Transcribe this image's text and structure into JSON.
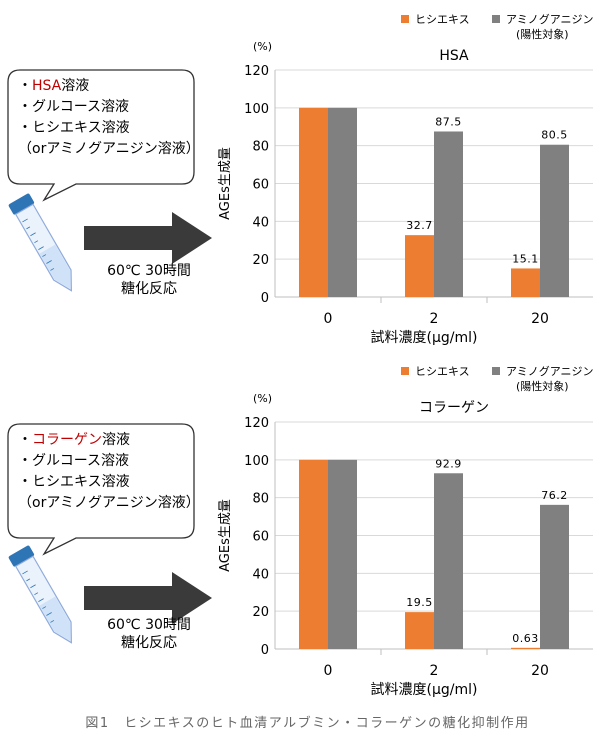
{
  "panels": [
    {
      "bubble_lines": [
        {
          "prefix": "・",
          "highlight": "HSA",
          "rest": "溶液"
        },
        {
          "prefix": "・",
          "highlight": "",
          "rest": "グルコース溶液"
        },
        {
          "prefix": "・",
          "highlight": "",
          "rest": "ヒシエキス溶液"
        },
        {
          "prefix": "",
          "highlight": "",
          "rest": "（orアミノグアニジン溶液）"
        }
      ],
      "condition": [
        "60℃ 30時間",
        "糖化反応"
      ]
    },
    {
      "bubble_lines": [
        {
          "prefix": "・",
          "highlight": "コラーゲン",
          "rest": "溶液"
        },
        {
          "prefix": "・",
          "highlight": "",
          "rest": "グルコース溶液"
        },
        {
          "prefix": "・",
          "highlight": "",
          "rest": "ヒシエキス溶液"
        },
        {
          "prefix": "",
          "highlight": "",
          "rest": "（orアミノグアニジン溶液）"
        }
      ],
      "condition": [
        "60℃ 30時間",
        "糖化反応"
      ]
    }
  ],
  "colors": {
    "hishi": "#ed7d31",
    "amino": "#808080",
    "accent_text": "#c00000"
  },
  "chart_data": [
    {
      "type": "bar",
      "title": "HSA",
      "unit": "(%)",
      "xlabel": "試料濃度(μg/ml)",
      "ylabel": "AGEs生成量",
      "categories": [
        "0",
        "2",
        "20"
      ],
      "ylim": [
        0,
        120
      ],
      "yticks": [
        0,
        20,
        40,
        60,
        80,
        100,
        120
      ],
      "grid": true,
      "legend_position": "top-right",
      "series": [
        {
          "name": "ヒシエキス",
          "values": [
            100,
            32.7,
            15.1
          ],
          "labels": [
            "",
            "32.7",
            "15.1"
          ]
        },
        {
          "name": "アミノグアニジン",
          "note": "(陽性対象)",
          "values": [
            100,
            87.5,
            80.5
          ],
          "labels": [
            "",
            "87.5",
            "80.5"
          ]
        }
      ]
    },
    {
      "type": "bar",
      "title": "コラーゲン",
      "unit": "(%)",
      "xlabel": "試料濃度(μg/ml)",
      "ylabel": "AGEs生成量",
      "categories": [
        "0",
        "2",
        "20"
      ],
      "ylim": [
        0,
        120
      ],
      "yticks": [
        0,
        20,
        40,
        60,
        80,
        100,
        120
      ],
      "grid": true,
      "legend_position": "top-right",
      "series": [
        {
          "name": "ヒシエキス",
          "values": [
            100,
            19.5,
            0.63
          ],
          "labels": [
            "",
            "19.5",
            "0.63"
          ]
        },
        {
          "name": "アミノグアニジン",
          "note": "(陽性対象)",
          "values": [
            100,
            92.9,
            76.2
          ],
          "labels": [
            "",
            "92.9",
            "76.2"
          ]
        }
      ]
    }
  ],
  "caption": "図1　ヒシエキスのヒト血清アルブミン・コラーゲンの糖化抑制作用"
}
